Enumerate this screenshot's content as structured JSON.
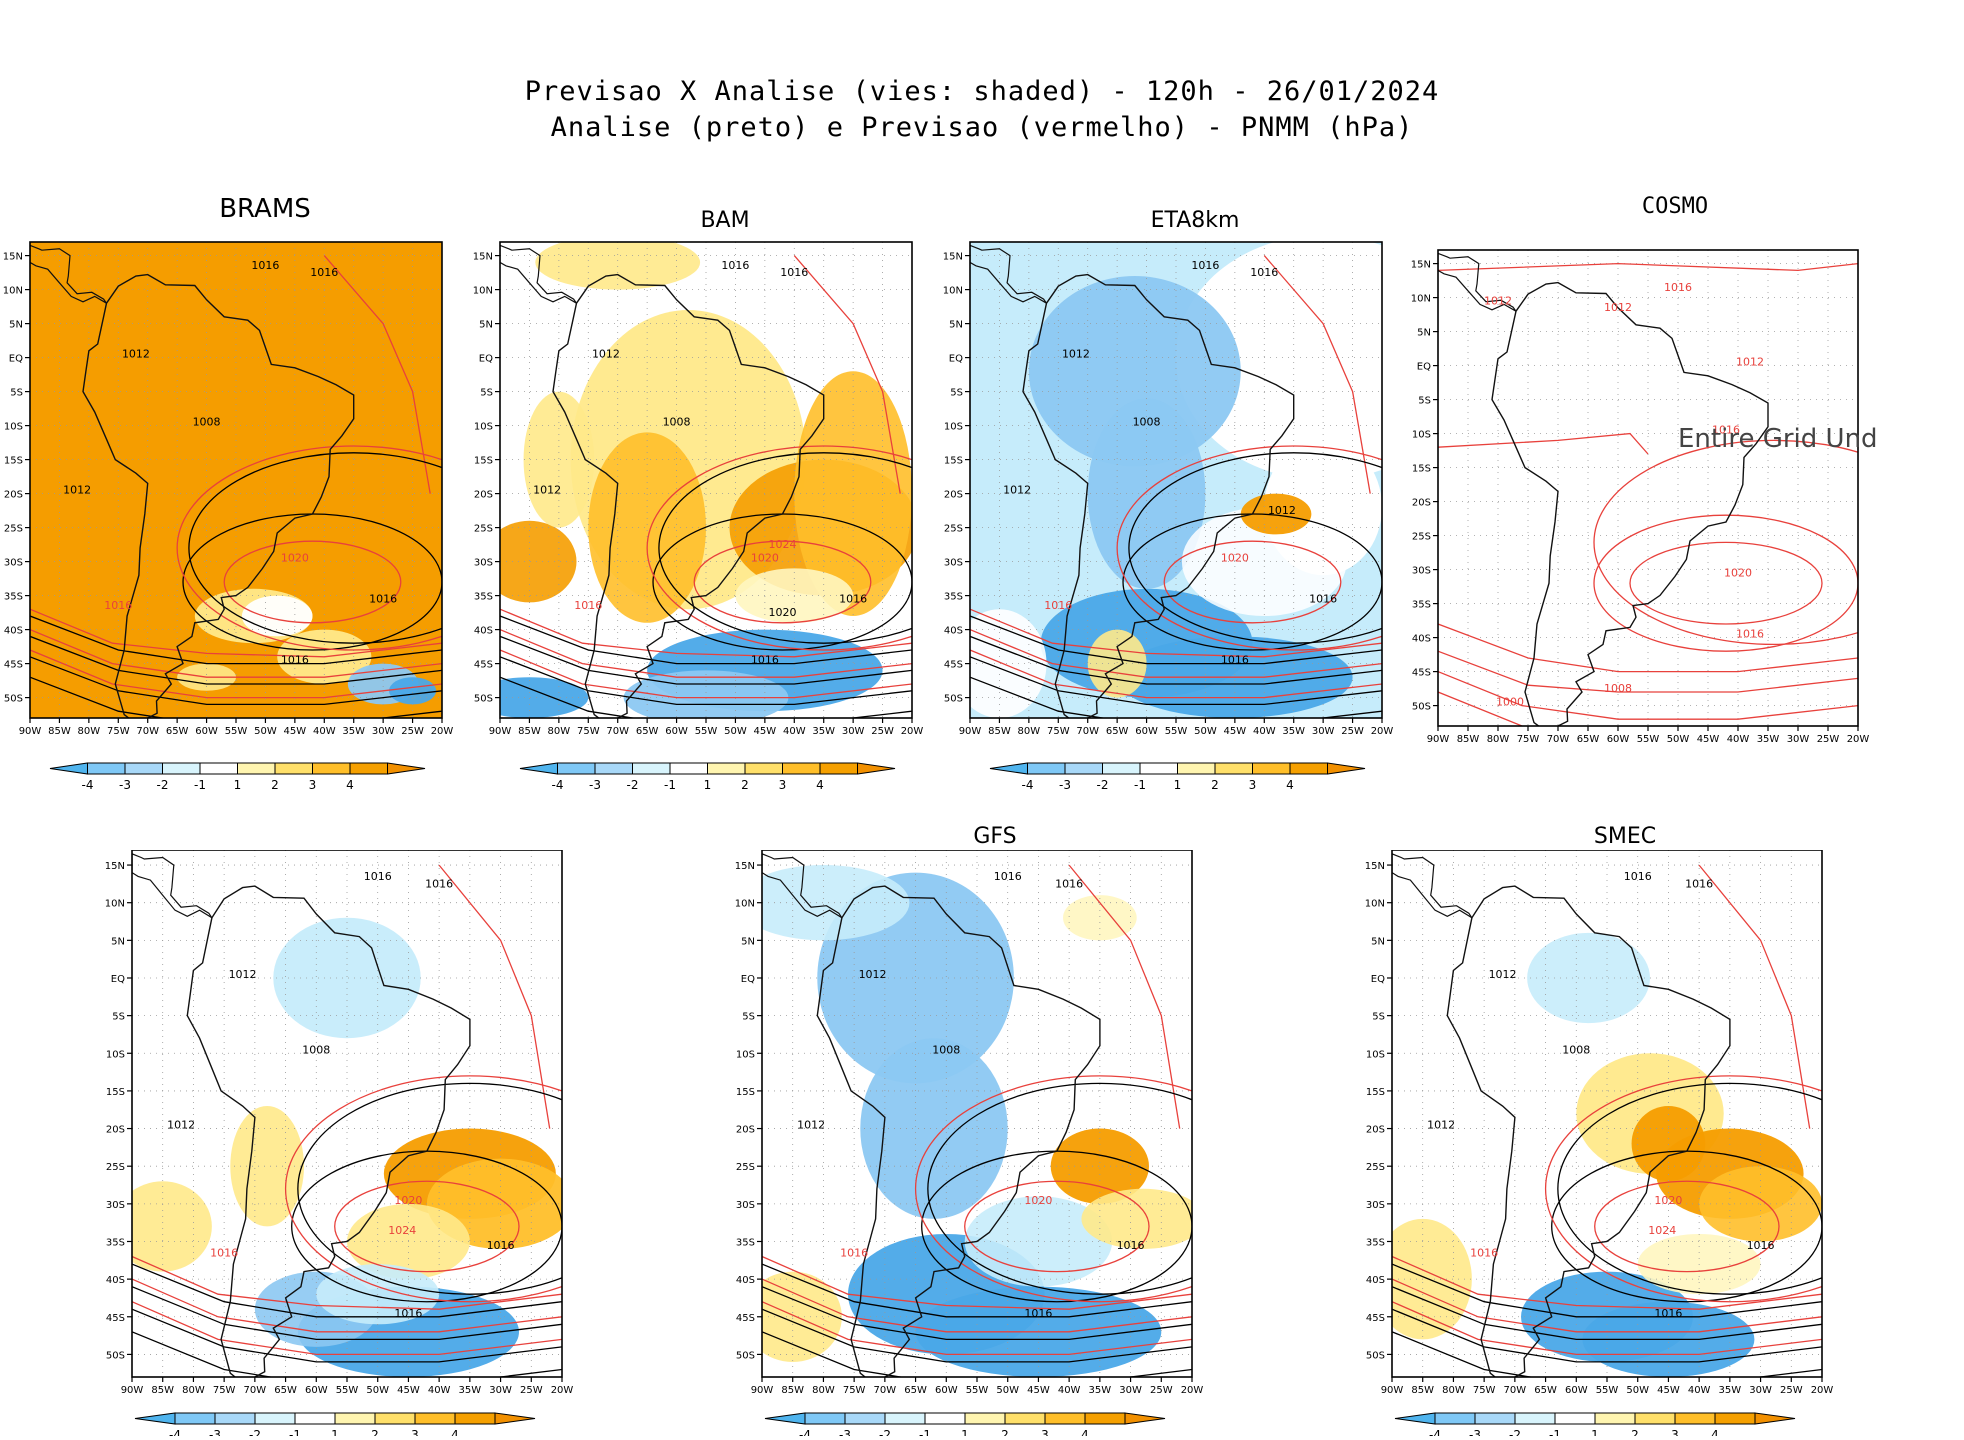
{
  "header": {
    "line1": "Previsao X Analise (vies: shaded) - 120h - 26/01/2024",
    "line2": "Analise (preto) e Previsao (vermelho) - PNMM (hPa)"
  },
  "axes": {
    "lat_ticks": [
      "15N",
      "10N",
      "5N",
      "EQ",
      "5S",
      "10S",
      "15S",
      "20S",
      "25S",
      "30S",
      "35S",
      "40S",
      "45S",
      "50S"
    ],
    "lon_ticks": [
      "90W",
      "85W",
      "80W",
      "75W",
      "70W",
      "65W",
      "60W",
      "55W",
      "50W",
      "45W",
      "40W",
      "35W",
      "30W",
      "25W",
      "20W"
    ]
  },
  "colorbar": {
    "labels": [
      "-4",
      "-3",
      "-2",
      "-1",
      "1",
      "2",
      "3",
      "4"
    ],
    "colors": [
      "#4fb4ee",
      "#7fc8f6",
      "#a8d8f8",
      "#d8f4fc",
      "#ffffff",
      "#fff5b0",
      "#ffe06a",
      "#ffbf2a",
      "#f5a000",
      "#f29000"
    ]
  },
  "colors": {
    "analysis_contour": "#000000",
    "forecast_contour": "#e8413c",
    "positive_bias": "#f59d00",
    "negative_bias": "#4aa8e8",
    "land_outline": "#111111"
  },
  "panels": [
    {
      "id": "brams",
      "title": "BRAMS"
    },
    {
      "id": "bam",
      "title": "BAM"
    },
    {
      "id": "eta",
      "title": "ETA8km"
    },
    {
      "id": "cosmo",
      "title": "COSMO",
      "note": "Entire Grid Und"
    },
    {
      "id": "unnamed",
      "title": ""
    },
    {
      "id": "gfs",
      "title": "GFS"
    },
    {
      "id": "smec",
      "title": "SMEC"
    }
  ]
}
